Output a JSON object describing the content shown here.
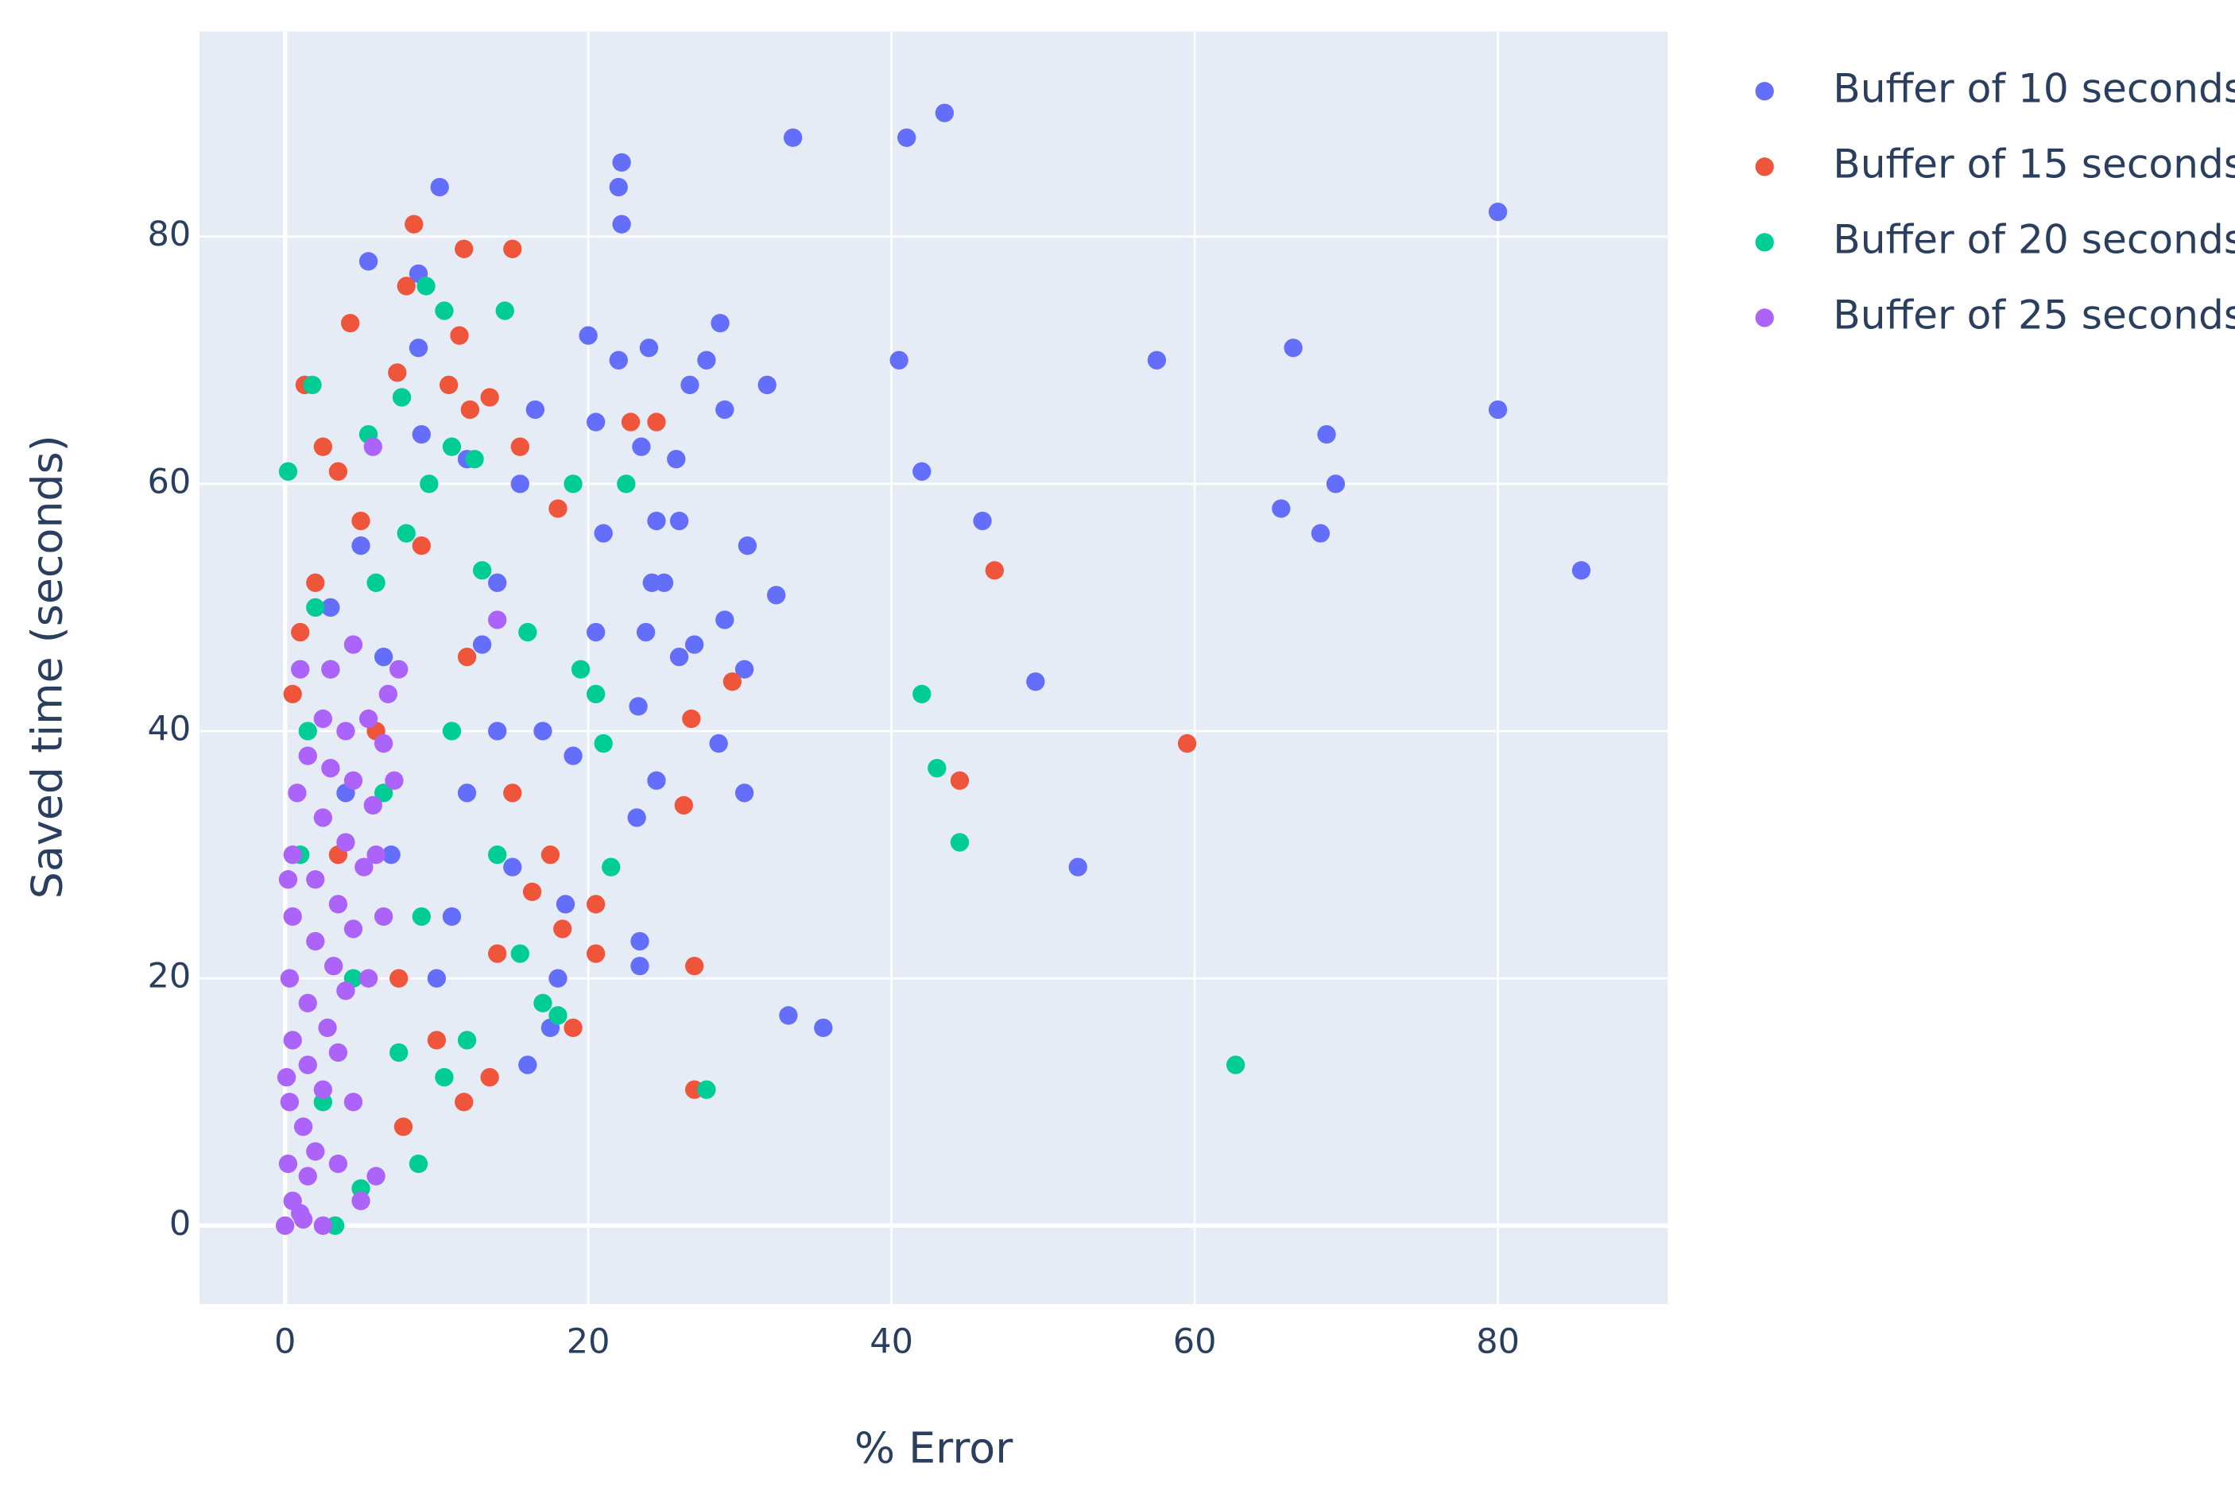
{
  "chart_data": {
    "type": "scatter",
    "x_label": "% Error",
    "y_label": "Saved time (seconds)",
    "xlim": [
      -5.64,
      91.2
    ],
    "ylim": [
      -6.34,
      96.6
    ],
    "xticks": [
      0,
      20,
      40,
      60,
      80
    ],
    "yticks": [
      0,
      20,
      40,
      60,
      80
    ],
    "grid": true,
    "legend": "top-right",
    "background": "#e5ecf6",
    "series": [
      {
        "name": "Buffer of 10 seconds",
        "color": "#636efa",
        "x": [
          33.5,
          41,
          43.5,
          22.2,
          22,
          10.2,
          22.2,
          80,
          5.5,
          8.8,
          57.5,
          66.5,
          80,
          68.7,
          69.3,
          65.7,
          68.3,
          85.5,
          46,
          40.5,
          42,
          49.5,
          52.3,
          33.2,
          35.5,
          28.7,
          31.8,
          30.5,
          32.4,
          30.3,
          29,
          30.3,
          28.6,
          27,
          24.5,
          23.2,
          23.4,
          23.4,
          20,
          22,
          24,
          26.7,
          27.8,
          29,
          25.8,
          26,
          24.5,
          23.5,
          24.2,
          25,
          23.8,
          26,
          23.3,
          20.5,
          21,
          20.5,
          15,
          16,
          17.5,
          18,
          11,
          12,
          13,
          14,
          15.5,
          16.5,
          19,
          18.5,
          17,
          9,
          8.8,
          12,
          3,
          5,
          6.5,
          4,
          7,
          10,
          14
        ],
        "y": [
          88,
          88,
          90,
          86,
          84,
          84,
          81,
          82,
          78,
          77,
          70,
          71,
          66,
          64,
          60,
          58,
          56,
          53,
          57,
          70,
          61,
          44,
          29,
          17,
          16,
          73,
          68,
          55,
          51,
          45,
          49,
          35,
          39,
          47,
          36,
          33,
          23,
          21,
          72,
          70,
          71,
          68,
          70,
          66,
          62,
          57,
          57,
          63,
          52,
          52,
          48,
          46,
          42,
          65,
          56,
          48,
          29,
          13,
          16,
          20,
          25,
          35,
          47,
          52,
          60,
          66,
          38,
          26,
          40,
          64,
          71,
          62,
          50,
          55,
          46,
          35,
          30,
          20,
          40
        ]
      },
      {
        "name": "Buffer of 15 seconds",
        "color": "#ef553b",
        "x": [
          8.5,
          11.8,
          15,
          8,
          4.3,
          11.5,
          7.4,
          1.3,
          10.8,
          12.2,
          13.5,
          22.8,
          24.5,
          2.5,
          15.5,
          3.5,
          46.8,
          29.5,
          26.8,
          59.5,
          44.5,
          26.3,
          20.5,
          18.3,
          20.5,
          27,
          19,
          27,
          11.8,
          13.5,
          7.8,
          2,
          0.5,
          5,
          9,
          12,
          15,
          17.5,
          16.3,
          10,
          7.5,
          3.5,
          6,
          1,
          14,
          18
        ],
        "y": [
          81,
          79,
          79,
          76,
          73,
          72,
          69,
          68,
          68,
          66,
          67,
          65,
          65,
          63,
          63,
          61,
          53,
          44,
          41,
          39,
          36,
          34,
          26,
          24,
          22,
          21,
          16,
          11,
          10,
          12,
          8,
          52,
          43,
          57,
          55,
          46,
          35,
          30,
          27,
          15,
          20,
          30,
          40,
          48,
          22,
          58
        ]
      },
      {
        "name": "Buffer of 20 seconds",
        "color": "#00cc96",
        "x": [
          1.8,
          9.3,
          10.5,
          14.5,
          7.7,
          0.2,
          5.5,
          11,
          12.5,
          19,
          22.5,
          42,
          43,
          44.5,
          21,
          19.5,
          20.5,
          21.5,
          27.8,
          62.7,
          8.8,
          3.3,
          5,
          18,
          17,
          12,
          10.5,
          3,
          1.5,
          2,
          6,
          8,
          13,
          16,
          14,
          15.5,
          9,
          6.5,
          4.5,
          2.5,
          1,
          7.5,
          11,
          9.5
        ],
        "y": [
          68,
          76,
          74,
          74,
          67,
          61,
          64,
          63,
          62,
          60,
          60,
          43,
          37,
          31,
          39,
          45,
          43,
          29,
          11,
          13,
          5,
          0,
          3,
          17,
          18,
          15,
          12,
          45,
          40,
          50,
          52,
          56,
          53,
          48,
          30,
          22,
          25,
          35,
          20,
          10,
          30,
          14,
          40,
          60
        ]
      },
      {
        "name": "Buffer of 25 seconds",
        "color": "#ab63fa",
        "x": [
          0,
          0.5,
          1,
          0.2,
          1.5,
          0.3,
          1.2,
          2,
          0.5,
          1.5,
          2.5,
          0.3,
          1.5,
          2.8,
          3.5,
          0.5,
          2,
          3.2,
          4,
          0.5,
          2,
          3.5,
          4.5,
          0.8,
          2.5,
          4,
          5.2,
          1.5,
          3,
          4.5,
          5.8,
          2.5,
          4,
          5.5,
          6.5,
          6.8,
          7.2,
          6,
          5.5,
          4.5,
          3.5,
          5,
          6,
          2.5,
          3,
          4.5,
          1,
          5.8,
          14,
          7.5,
          6.5,
          1.2,
          0.1,
          0.2
        ],
        "y": [
          0,
          2,
          1,
          5,
          4,
          10,
          8,
          6,
          15,
          13,
          11,
          20,
          18,
          16,
          14,
          25,
          23,
          21,
          19,
          30,
          28,
          26,
          24,
          35,
          33,
          31,
          29,
          38,
          37,
          36,
          34,
          41,
          40,
          41,
          39,
          43,
          36,
          30,
          20,
          10,
          5,
          2,
          4,
          0,
          45,
          47,
          45,
          63,
          49,
          45,
          25,
          0.5,
          12,
          28
        ]
      }
    ]
  }
}
